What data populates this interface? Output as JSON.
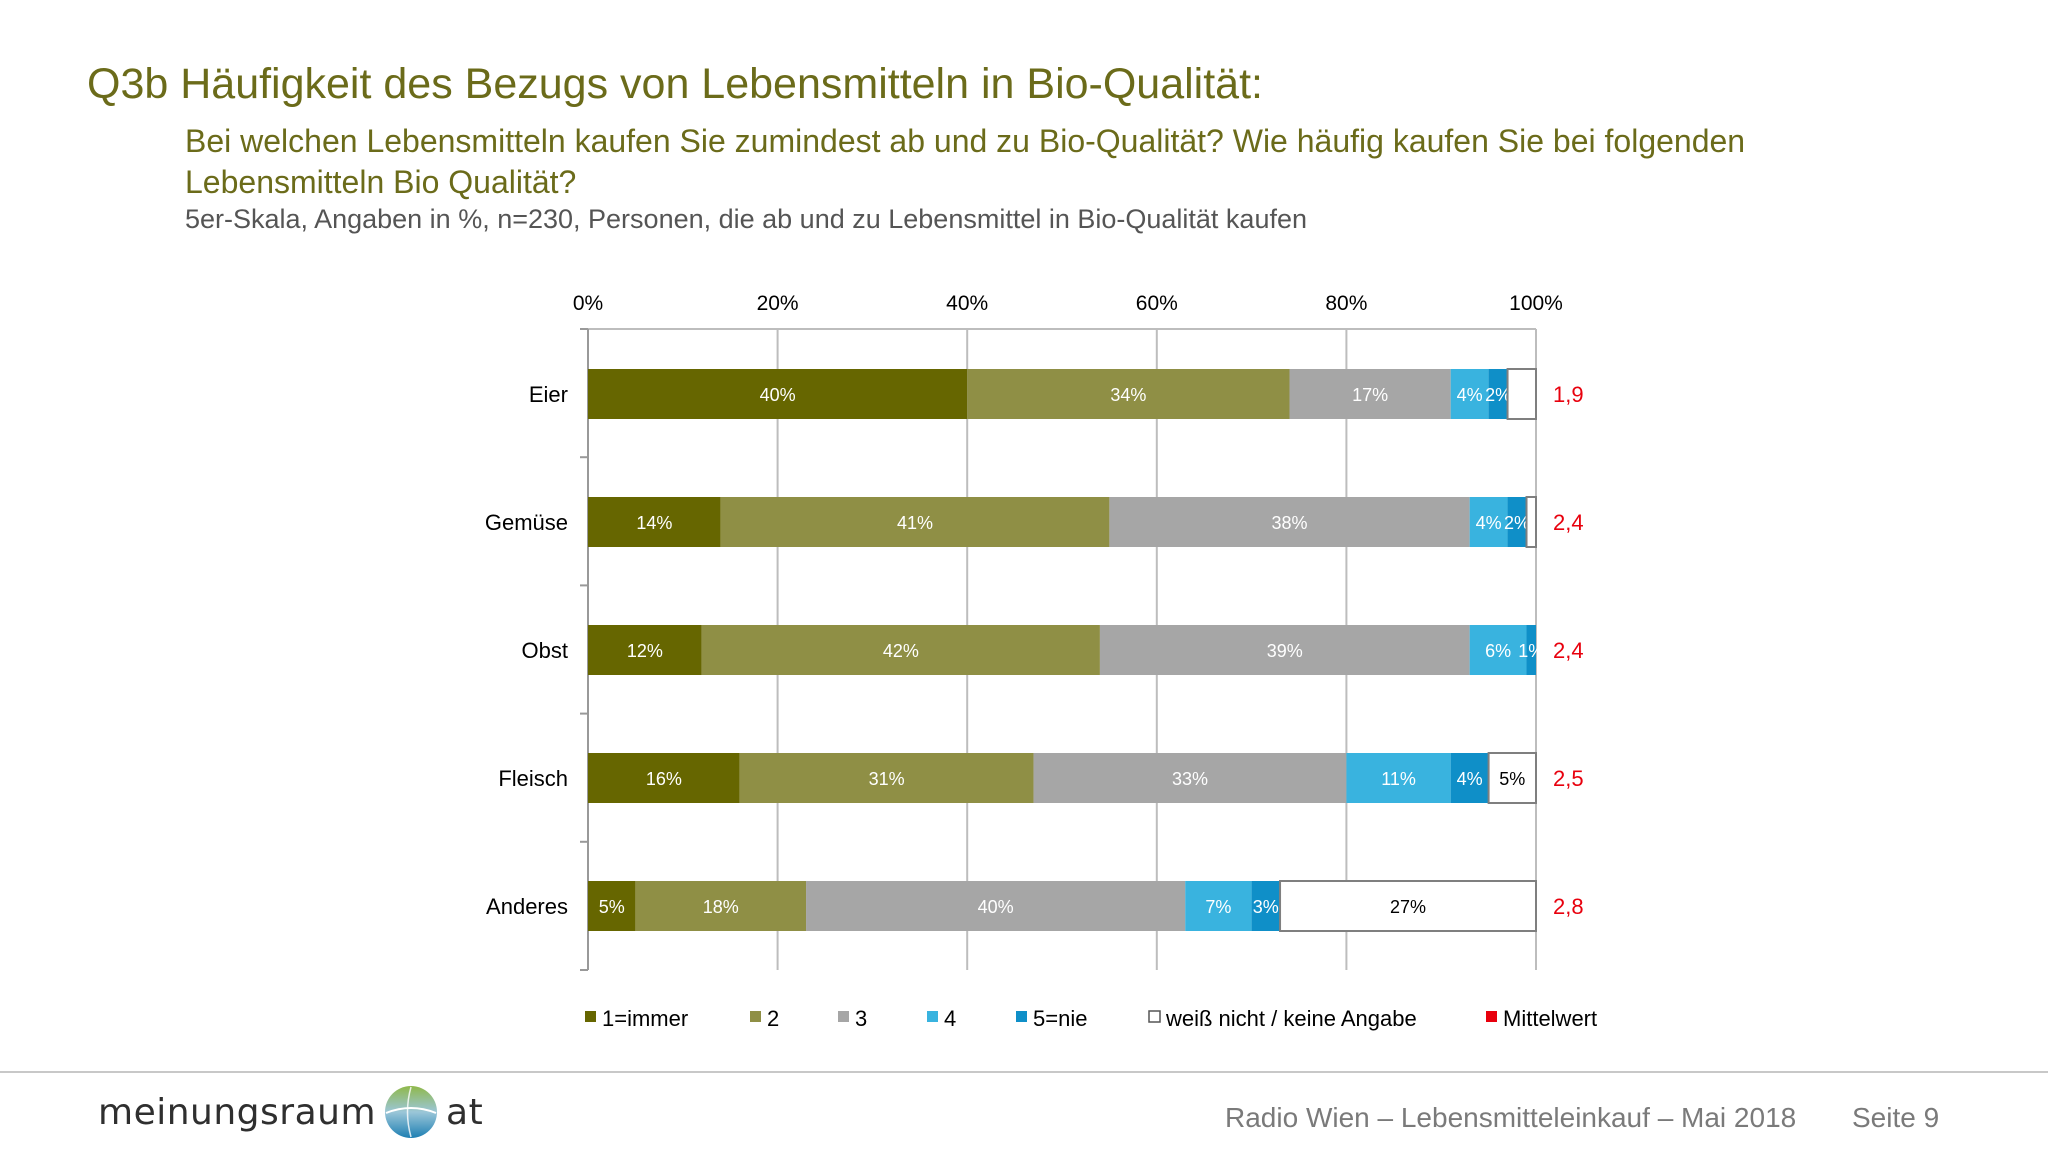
{
  "header": {
    "title": "Q3b Häufigkeit des Bezugs von Lebensmitteln in Bio-Qualität:",
    "subtitle": "Bei welchen Lebensmitteln kaufen Sie zumindest ab und zu Bio-Qualität? Wie häufig kaufen Sie bei folgenden Lebensmitteln Bio Qualität?",
    "note": "5er-Skala, Angaben in %, n=230, Personen, die ab und zu Lebensmittel in Bio-Qualität kaufen"
  },
  "footer": {
    "logo_left": "meinungsraum",
    "logo_right": "at",
    "text": "Radio Wien – Lebensmitteleinkauf – Mai 2018",
    "page": "Seite 9"
  },
  "chart_data": {
    "type": "bar",
    "orientation": "horizontal",
    "stacked": true,
    "categories": [
      "Eier",
      "Gemüse",
      "Obst",
      "Fleisch",
      "Anderes"
    ],
    "x_ticks": [
      "0%",
      "20%",
      "40%",
      "60%",
      "80%",
      "100%"
    ],
    "xlim": [
      0,
      100
    ],
    "grid": true,
    "series": [
      {
        "name": "1=immer",
        "color": "#666600",
        "label_color": "#ffffff",
        "values": [
          40,
          14,
          12,
          16,
          5
        ],
        "labels": [
          "40%",
          "14%",
          "12%",
          "16%",
          "5%"
        ]
      },
      {
        "name": "2",
        "color": "#8f8f45",
        "label_color": "#ffffff",
        "values": [
          34,
          41,
          42,
          31,
          18
        ],
        "labels": [
          "34%",
          "41%",
          "42%",
          "31%",
          "18%"
        ]
      },
      {
        "name": "3",
        "color": "#a6a6a6",
        "label_color": "#ffffff",
        "values": [
          17,
          38,
          39,
          33,
          40
        ],
        "labels": [
          "17%",
          "38%",
          "39%",
          "33%",
          "40%"
        ]
      },
      {
        "name": "4",
        "color": "#39b3df",
        "label_color": "#ffffff",
        "values": [
          4,
          4,
          6,
          11,
          7
        ],
        "labels": [
          "4%",
          "4%",
          "6%",
          "11%",
          "7%"
        ]
      },
      {
        "name": "5=nie",
        "color": "#0f8fc8",
        "label_color": "#ffffff",
        "values": [
          2,
          2,
          1,
          4,
          3
        ],
        "labels": [
          "2%",
          "2%",
          "1%",
          "4%",
          "3%"
        ]
      },
      {
        "name": "weiß nicht / keine Angabe",
        "color": "#ffffff",
        "label_color": "#000000",
        "values": [
          3,
          1,
          0,
          5,
          27
        ],
        "labels": [
          "",
          "",
          "",
          "5%",
          "27%"
        ]
      }
    ],
    "mean": {
      "name": "Mittelwert",
      "color": "#e8000d",
      "values": [
        "1,9",
        "2,4",
        "2,4",
        "2,5",
        "2,8"
      ]
    },
    "legend_position": "bottom"
  }
}
